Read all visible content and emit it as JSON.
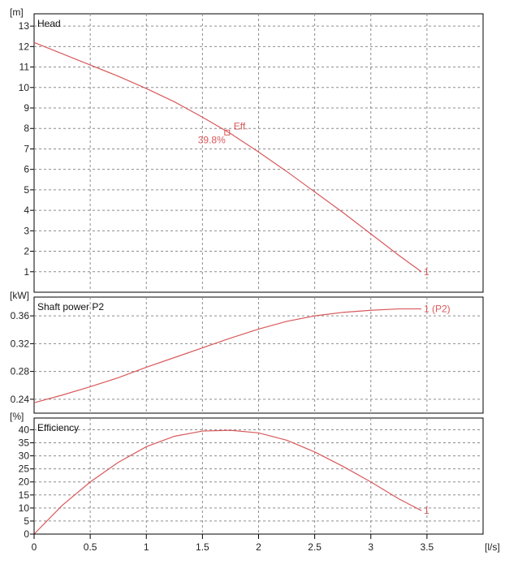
{
  "chart_data": [
    {
      "type": "line",
      "title": "Head",
      "unit": "[m]",
      "ylim": [
        0,
        13.6
      ],
      "yticks": [
        1,
        2,
        3,
        4,
        5,
        6,
        7,
        8,
        9,
        10,
        11,
        12,
        13
      ],
      "grid": true,
      "series": [
        {
          "name": "1",
          "x": [
            0,
            0.25,
            0.5,
            0.75,
            1.0,
            1.25,
            1.5,
            1.75,
            2.0,
            2.25,
            2.5,
            2.75,
            3.0,
            3.25,
            3.45
          ],
          "y": [
            12.2,
            11.65,
            11.1,
            10.55,
            9.95,
            9.3,
            8.55,
            7.75,
            6.85,
            5.9,
            4.9,
            3.9,
            2.85,
            1.8,
            1.0
          ],
          "color": "#d9595b"
        }
      ],
      "annotations": [
        {
          "text": "Eff.",
          "x": 1.72,
          "y": 7.8,
          "marker": "square"
        },
        {
          "text": "39.8%",
          "x": 1.72,
          "y": 7.8
        }
      ]
    },
    {
      "type": "line",
      "title": "Shaft power P2",
      "unit": "[kW]",
      "ylim": [
        0.22,
        0.387
      ],
      "yticks": [
        0.24,
        0.28,
        0.32,
        0.36
      ],
      "grid": true,
      "series": [
        {
          "name": "1 (P2)",
          "x": [
            0,
            0.25,
            0.5,
            0.75,
            1.0,
            1.25,
            1.5,
            1.75,
            2.0,
            2.25,
            2.5,
            2.75,
            3.0,
            3.25,
            3.45
          ],
          "y": [
            0.235,
            0.246,
            0.258,
            0.271,
            0.286,
            0.3,
            0.314,
            0.328,
            0.341,
            0.352,
            0.36,
            0.365,
            0.368,
            0.37,
            0.37
          ],
          "color": "#d9595b"
        }
      ]
    },
    {
      "type": "line",
      "title": "Efficiency",
      "unit": "[%]",
      "ylim": [
        0,
        44.5
      ],
      "yticks": [
        0,
        5,
        10,
        15,
        20,
        25,
        30,
        35,
        40
      ],
      "grid": true,
      "series": [
        {
          "name": "1",
          "x": [
            0,
            0.25,
            0.5,
            0.75,
            1.0,
            1.25,
            1.5,
            1.75,
            2.0,
            2.25,
            2.5,
            2.75,
            3.0,
            3.25,
            3.45
          ],
          "y": [
            0,
            11,
            20,
            27.5,
            33.5,
            37.5,
            39.5,
            39.8,
            38.8,
            36,
            31.5,
            26,
            20,
            13.5,
            9
          ],
          "color": "#d9595b"
        }
      ]
    }
  ],
  "x_axis": {
    "unit": "[l/s]",
    "xlim": [
      0,
      4.0
    ],
    "ticks": [
      0,
      0.5,
      1,
      1.5,
      2,
      2.5,
      3,
      3.5
    ],
    "tick_labels": [
      "0",
      "0.5",
      "1",
      "1.5",
      "2",
      "2.5",
      "3",
      "3.5"
    ]
  }
}
